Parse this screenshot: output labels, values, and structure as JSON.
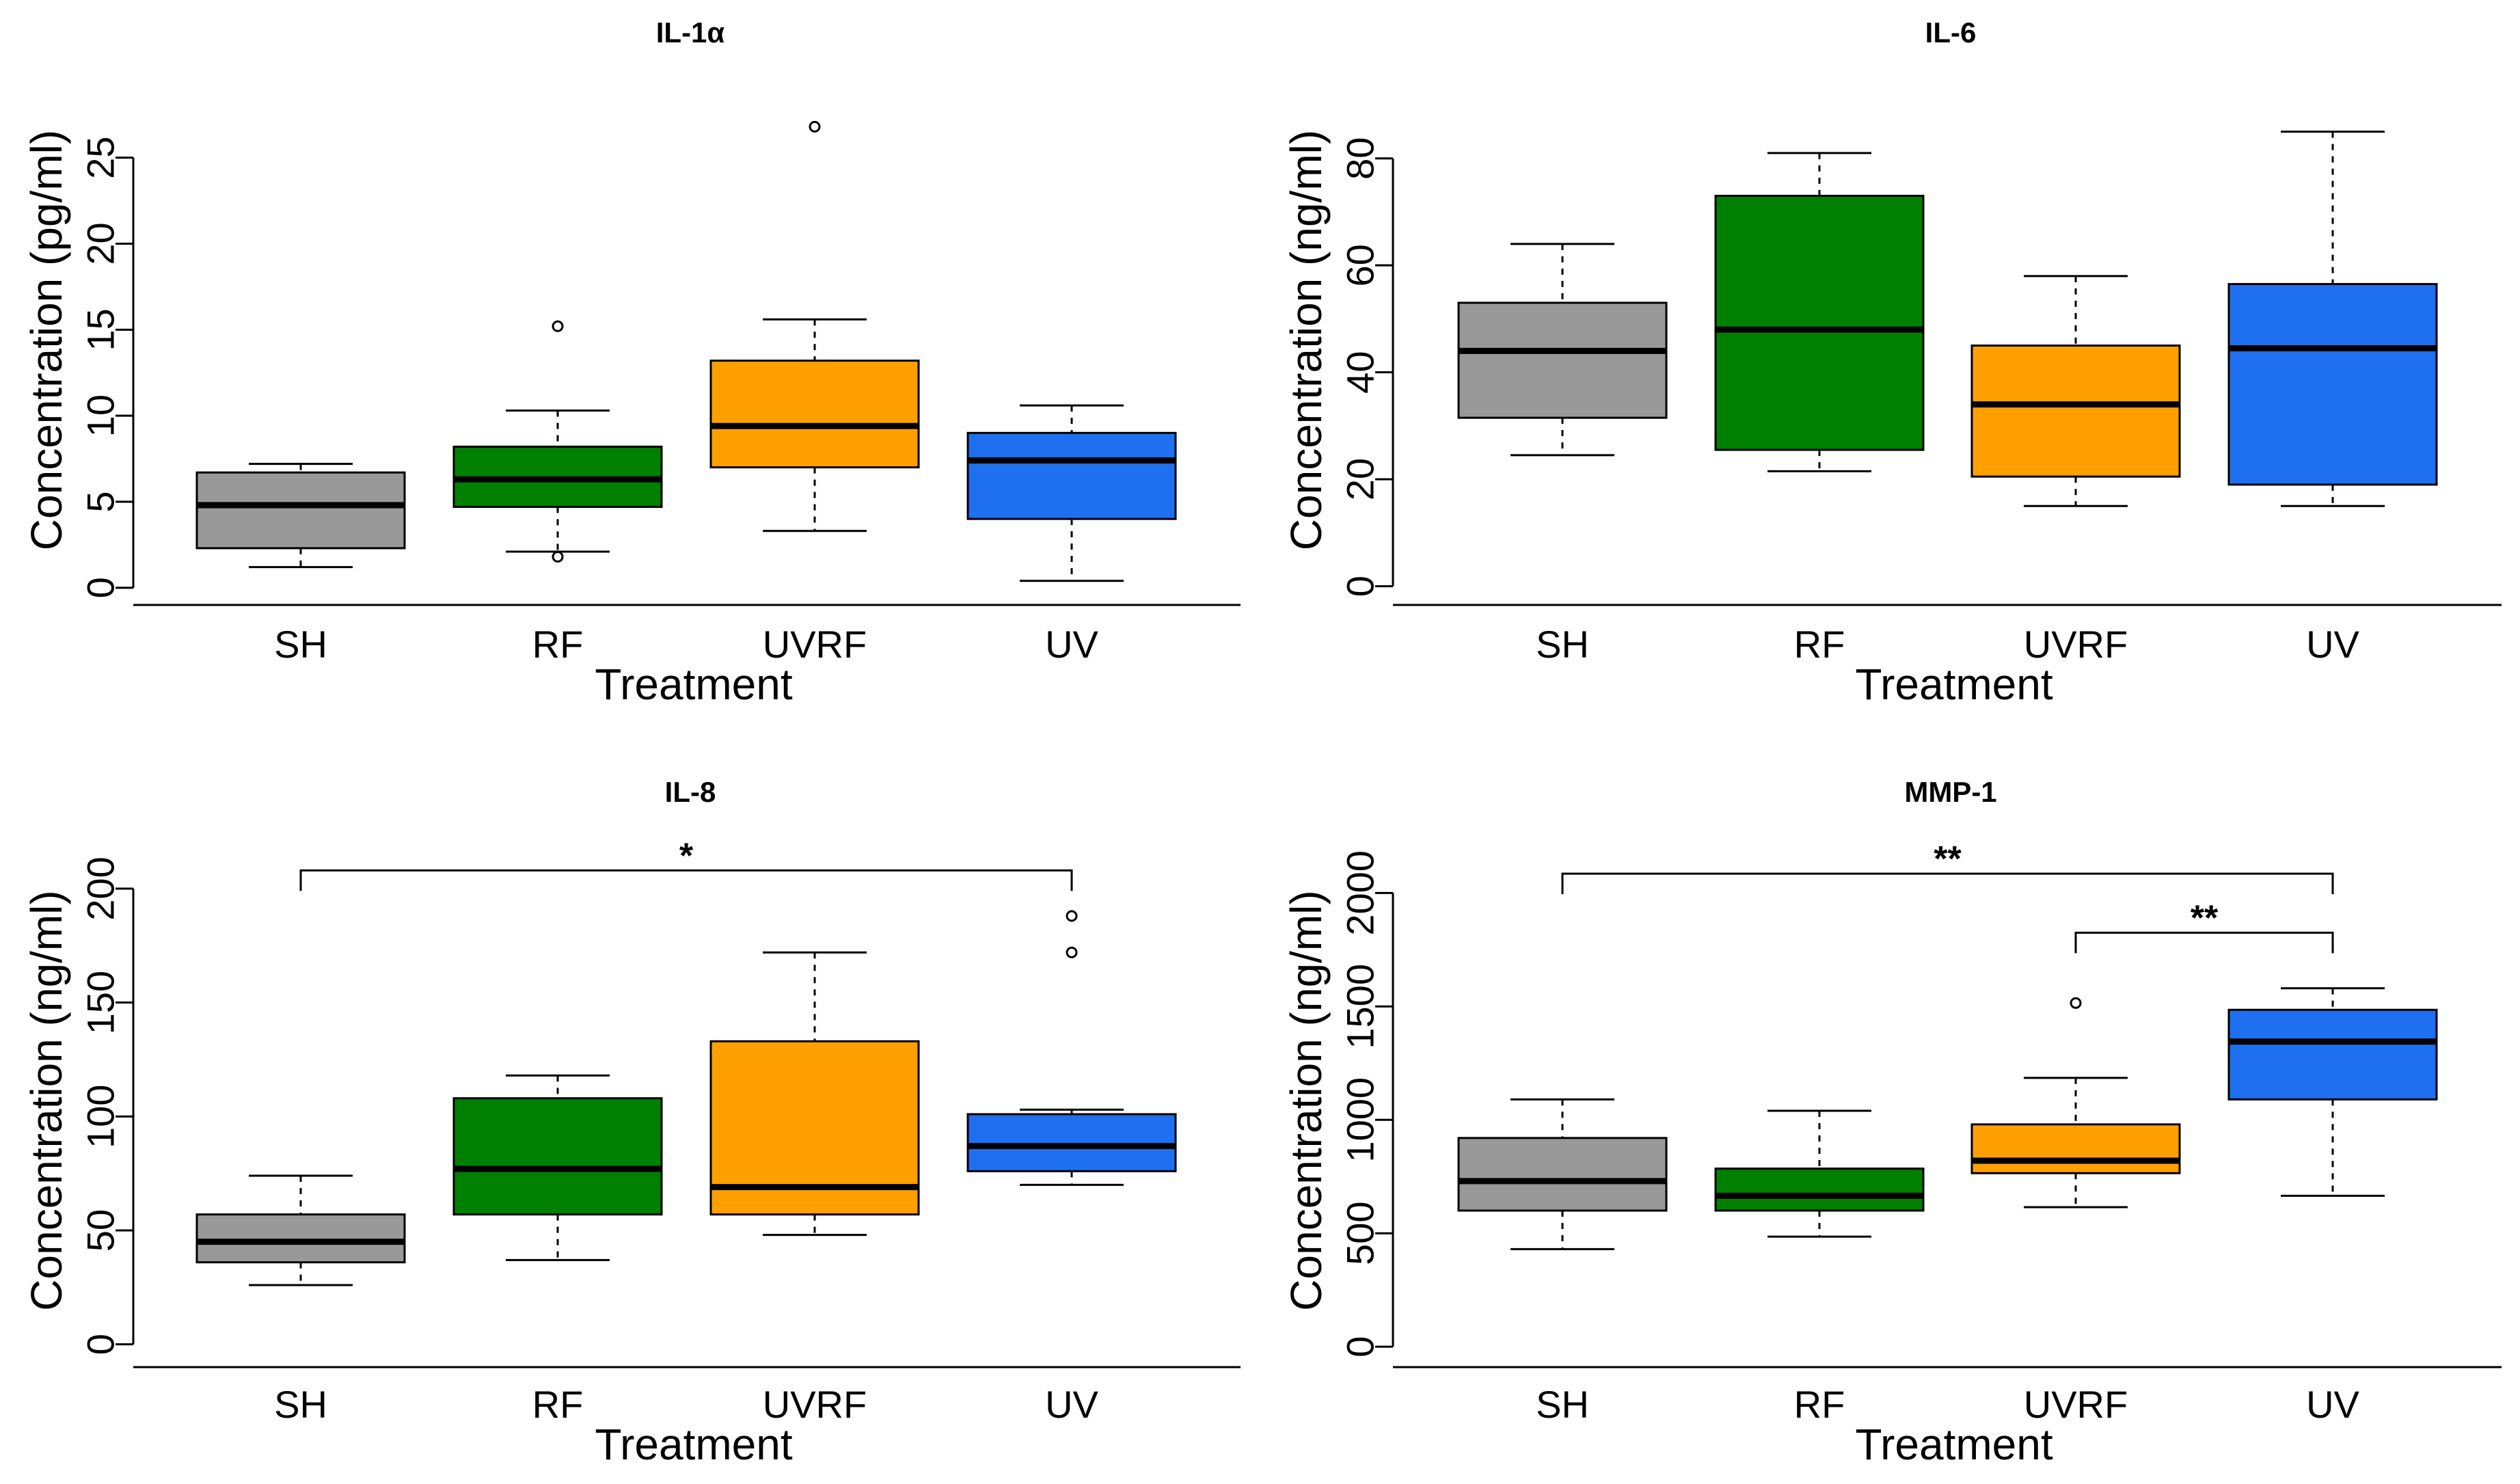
{
  "chart_data": [
    {
      "type": "box",
      "title": "IL-1α",
      "xlabel": "Treatment",
      "ylabel": "Concentration (pg/ml)",
      "ylim": [
        -1,
        29
      ],
      "yticks": [
        0,
        5,
        10,
        15,
        20,
        25
      ],
      "ytick_labels": [
        "0",
        "5",
        "10",
        "15",
        "20",
        "25"
      ],
      "categories": [
        "SH",
        "RF",
        "UVRF",
        "UV"
      ],
      "series": [
        {
          "name": "SH",
          "color": "#999999",
          "whisker_low": 1.2,
          "q1": 2.3,
          "median": 4.8,
          "q3": 6.7,
          "whisker_high": 7.2,
          "outliers": []
        },
        {
          "name": "RF",
          "color": "#008000",
          "whisker_low": 2.1,
          "q1": 4.7,
          "median": 6.3,
          "q3": 8.2,
          "whisker_high": 10.3,
          "outliers": [
            1.8,
            15.2
          ]
        },
        {
          "name": "UVRF",
          "color": "#FFA000",
          "whisker_low": 3.3,
          "q1": 7.0,
          "median": 9.4,
          "q3": 13.2,
          "whisker_high": 15.6,
          "outliers": [
            26.8
          ]
        },
        {
          "name": "UV",
          "color": "#1E70F0",
          "whisker_low": 0.4,
          "q1": 4.0,
          "median": 7.4,
          "q3": 9.0,
          "whisker_high": 10.6,
          "outliers": []
        }
      ],
      "significance": []
    },
    {
      "type": "box",
      "title": "IL-6",
      "xlabel": "Treatment",
      "ylabel": "Concentration (ng/ml)",
      "ylim": [
        -3.5,
        93
      ],
      "yticks": [
        0,
        20,
        40,
        60,
        80
      ],
      "ytick_labels": [
        "0",
        "20",
        "40",
        "60",
        "80"
      ],
      "categories": [
        "SH",
        "RF",
        "UVRF",
        "UV"
      ],
      "series": [
        {
          "name": "SH",
          "color": "#999999",
          "whisker_low": 24.5,
          "q1": 31.5,
          "median": 44.0,
          "q3": 53.0,
          "whisker_high": 64.0,
          "outliers": []
        },
        {
          "name": "RF",
          "color": "#008000",
          "whisker_low": 21.5,
          "q1": 25.5,
          "median": 48.0,
          "q3": 73.0,
          "whisker_high": 81.0,
          "outliers": []
        },
        {
          "name": "UVRF",
          "color": "#FFA000",
          "whisker_low": 15.0,
          "q1": 20.5,
          "median": 34.0,
          "q3": 45.0,
          "whisker_high": 58.0,
          "outliers": []
        },
        {
          "name": "UV",
          "color": "#1E70F0",
          "whisker_low": 15.0,
          "q1": 19.0,
          "median": 44.5,
          "q3": 56.5,
          "whisker_high": 85.0,
          "outliers": []
        }
      ],
      "significance": []
    },
    {
      "type": "box",
      "title": "IL-8",
      "xlabel": "Treatment",
      "ylabel": "Concentration (ng/ml)",
      "ylim": [
        -10,
        218
      ],
      "yticks": [
        0,
        50,
        100,
        150,
        200
      ],
      "ytick_labels": [
        "0",
        "50",
        "100",
        "150",
        "200"
      ],
      "categories": [
        "SH",
        "RF",
        "UVRF",
        "UV"
      ],
      "series": [
        {
          "name": "SH",
          "color": "#999999",
          "whisker_low": 26,
          "q1": 36,
          "median": 45,
          "q3": 57,
          "whisker_high": 74,
          "outliers": []
        },
        {
          "name": "RF",
          "color": "#008000",
          "whisker_low": 37,
          "q1": 57,
          "median": 77,
          "q3": 108,
          "whisker_high": 118,
          "outliers": []
        },
        {
          "name": "UVRF",
          "color": "#FFA000",
          "whisker_low": 48,
          "q1": 57,
          "median": 69,
          "q3": 133,
          "whisker_high": 172,
          "outliers": []
        },
        {
          "name": "UV",
          "color": "#1E70F0",
          "whisker_low": 70,
          "q1": 76,
          "median": 87,
          "q3": 101,
          "whisker_high": 103,
          "outliers": [
            172,
            188
          ]
        }
      ],
      "significance": [
        {
          "from": "SH",
          "to": "UV",
          "level": 208,
          "label": "*"
        }
      ]
    },
    {
      "type": "box",
      "title": "MMP-1",
      "xlabel": "Treatment",
      "ylabel": "Concentration (ng/ml)",
      "ylim": [
        -90,
        2200
      ],
      "yticks": [
        0,
        500,
        1000,
        1500,
        2000
      ],
      "ytick_labels": [
        "0",
        "500",
        "1000",
        "1500",
        "2000"
      ],
      "categories": [
        "SH",
        "RF",
        "UVRF",
        "UV"
      ],
      "series": [
        {
          "name": "SH",
          "color": "#999999",
          "whisker_low": 430,
          "q1": 600,
          "median": 730,
          "q3": 920,
          "whisker_high": 1090,
          "outliers": []
        },
        {
          "name": "RF",
          "color": "#008000",
          "whisker_low": 485,
          "q1": 600,
          "median": 665,
          "q3": 785,
          "whisker_high": 1040,
          "outliers": []
        },
        {
          "name": "UVRF",
          "color": "#FFA000",
          "whisker_low": 615,
          "q1": 765,
          "median": 820,
          "q3": 980,
          "whisker_high": 1185,
          "outliers": [
            1515
          ]
        },
        {
          "name": "UV",
          "color": "#1E70F0",
          "whisker_low": 665,
          "q1": 1090,
          "median": 1345,
          "q3": 1485,
          "whisker_high": 1580,
          "outliers": []
        }
      ],
      "significance": [
        {
          "from": "SH",
          "to": "UV",
          "level": 2085,
          "label": "**"
        },
        {
          "from": "UVRF",
          "to": "UV",
          "level": 1825,
          "label": "**"
        }
      ]
    }
  ]
}
